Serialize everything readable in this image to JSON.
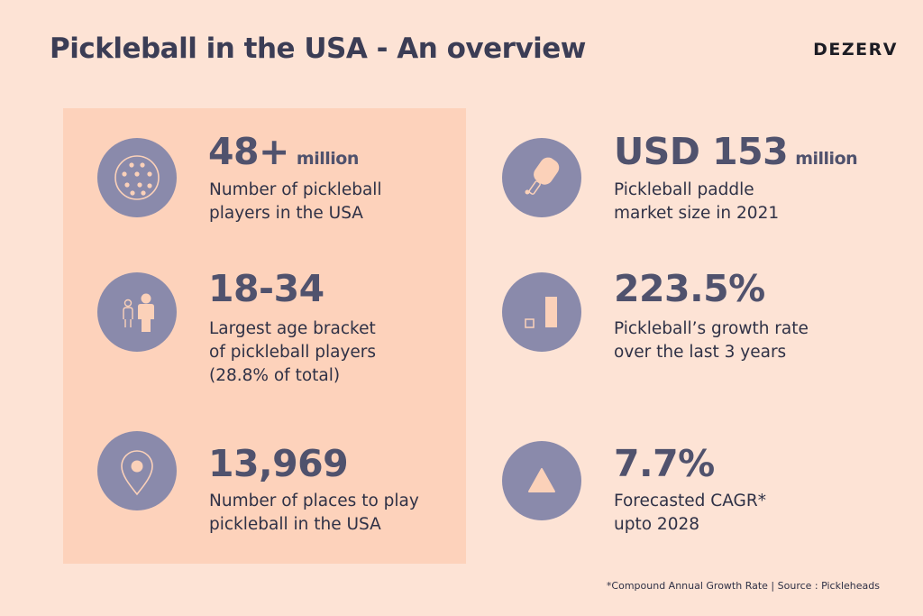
{
  "header": {
    "title": "Pickleball in the USA - An overview",
    "brand": "DEZERV"
  },
  "stats": [
    {
      "id": "players",
      "value": "48+",
      "unit": "million",
      "description": [
        "Number of pickleball",
        "players in the USA"
      ],
      "icon": "pickleball-icon"
    },
    {
      "id": "age",
      "value": "18-34",
      "unit": "",
      "description": [
        "Largest age bracket",
        "of pickleball players",
        "(28.8% of total)"
      ],
      "icon": "people-icon"
    },
    {
      "id": "places",
      "value": "13,969",
      "unit": "",
      "description": [
        "Number of places to play",
        "pickleball in the USA"
      ],
      "icon": "location-pin-icon"
    },
    {
      "id": "market",
      "value": "USD 153",
      "unit": "million",
      "description": [
        "Pickleball paddle",
        "market size in 2021"
      ],
      "icon": "paddle-icon"
    },
    {
      "id": "growth",
      "value": "223.5%",
      "unit": "",
      "description": [
        "Pickleball’s growth rate",
        "over the last 3 years"
      ],
      "icon": "growth-bars-icon"
    },
    {
      "id": "cagr",
      "value": "7.7%",
      "unit": "",
      "description": [
        "Forecasted CAGR*",
        "upto 2028"
      ],
      "icon": "triangle-up-icon"
    }
  ],
  "footnote": "*Compound Annual Growth Rate | Source : Pickleheads",
  "colors": {
    "background": "#fde3d5",
    "panel": "#fdd2bb",
    "icon_circle": "#8a8aab",
    "icon_accent": "#fbd1b9",
    "value_text": "#50526d"
  }
}
